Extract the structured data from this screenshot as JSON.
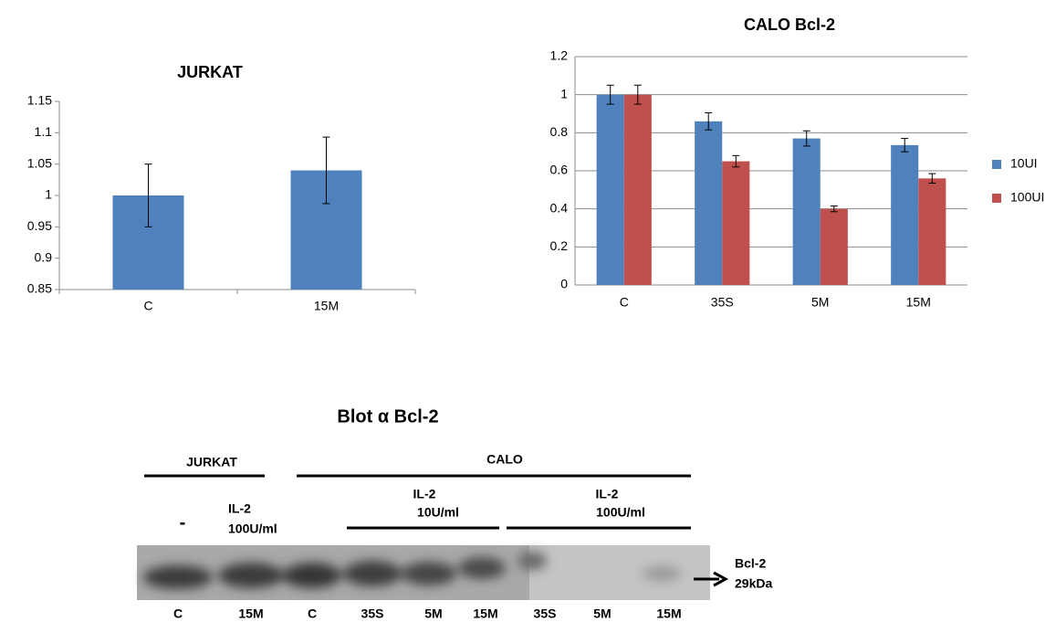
{
  "chart_data": [
    {
      "type": "bar",
      "title": "JURKAT",
      "categories": [
        "C",
        "15M"
      ],
      "series": [
        {
          "name": null,
          "color": "#4f81bd",
          "values": [
            1,
            1.04
          ],
          "errors": [
            0.05,
            0.053
          ]
        }
      ],
      "ylim": [
        0.85,
        1.15
      ],
      "yticks": [
        0.85,
        0.9,
        0.95,
        1,
        1.05,
        1.1,
        1.15
      ],
      "grid": false,
      "legend": "none"
    },
    {
      "type": "bar",
      "title": "CALO Bcl-2",
      "categories": [
        "C",
        "35S",
        "5M",
        "15M"
      ],
      "series": [
        {
          "name": "10UI",
          "color": "#4f81bd",
          "values": [
            1,
            0.86,
            0.77,
            0.735
          ],
          "errors": [
            0.05,
            0.045,
            0.04,
            0.035
          ]
        },
        {
          "name": "100UI",
          "color": "#c0504d",
          "values": [
            1,
            0.65,
            0.4,
            0.56
          ],
          "errors": [
            0.05,
            0.03,
            0.015,
            0.025
          ]
        }
      ],
      "ylim": [
        0,
        1.2
      ],
      "yticks": [
        0,
        0.2,
        0.4,
        0.6,
        0.8,
        1,
        1.2
      ],
      "grid": true,
      "legend": "right"
    }
  ],
  "blot": {
    "title": "Blot α Bcl-2",
    "groups": [
      "JURKAT",
      "CALO"
    ],
    "jurkat_conditions": [
      "-",
      [
        "IL-2",
        "100U/ml"
      ]
    ],
    "calo_conditions": [
      [
        "IL-2",
        "10U/ml"
      ],
      [
        "IL-2",
        "100U/ml"
      ]
    ],
    "lanes": [
      "C",
      "15M",
      "C",
      "35S",
      "5M",
      "15M",
      "35S",
      "5M",
      "15M"
    ],
    "marker": [
      "Bcl-2",
      "29kDa"
    ]
  }
}
